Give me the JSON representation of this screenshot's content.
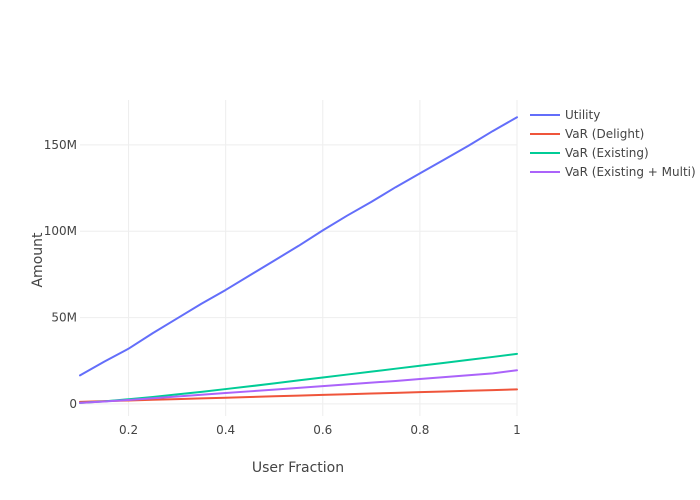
{
  "chart_data": {
    "type": "line",
    "title": "",
    "xlabel": "User Fraction",
    "ylabel": "Amount",
    "xlim": [
      0.1,
      1.0
    ],
    "ylim": [
      -7000000,
      176000000
    ],
    "x_ticks": [
      0.2,
      0.4,
      0.6,
      0.8,
      1.0
    ],
    "x_tick_labels": [
      "0.2",
      "0.4",
      "0.6",
      "0.8",
      "1"
    ],
    "y_ticks": [
      0,
      50000000,
      100000000,
      150000000
    ],
    "y_tick_labels": [
      "0",
      "50M",
      "100M",
      "150M"
    ],
    "grid": true,
    "legend": "top-right",
    "x": [
      0.1,
      0.15,
      0.2,
      0.25,
      0.3,
      0.35,
      0.4,
      0.45,
      0.5,
      0.55,
      0.6,
      0.65,
      0.7,
      0.75,
      0.8,
      0.85,
      0.9,
      0.95,
      1.0
    ],
    "series": [
      {
        "name": "Utility",
        "color": "#636efa",
        "values": [
          16500000,
          24500000,
          32000000,
          41000000,
          49500000,
          58000000,
          66000000,
          74500000,
          83000000,
          91500000,
          100500000,
          109000000,
          117000000,
          125500000,
          133500000,
          141500000,
          149500000,
          158000000,
          166000000
        ]
      },
      {
        "name": "VaR (Delight)",
        "color": "#ef553b",
        "values": [
          1200000,
          1600000,
          2000000,
          2400000,
          2800000,
          3200000,
          3600000,
          4000000,
          4400000,
          4800000,
          5200000,
          5600000,
          6000000,
          6400000,
          6800000,
          7200000,
          7600000,
          8000000,
          8400000
        ]
      },
      {
        "name": "VaR (Existing)",
        "color": "#00cc96",
        "values": [
          600000,
          1500000,
          2700000,
          4000000,
          5500000,
          7000000,
          8600000,
          10200000,
          11900000,
          13600000,
          15300000,
          17000000,
          18700000,
          20400000,
          22100000,
          23800000,
          25500000,
          27200000,
          29000000
        ]
      },
      {
        "name": "VaR (Existing + Multi)",
        "color": "#ab63fa",
        "values": [
          600000,
          1400000,
          2300000,
          3300000,
          4300000,
          5300000,
          6300000,
          7300000,
          8300000,
          9300000,
          10300000,
          11300000,
          12300000,
          13300000,
          14400000,
          15500000,
          16600000,
          17700000,
          19500000
        ]
      }
    ]
  }
}
